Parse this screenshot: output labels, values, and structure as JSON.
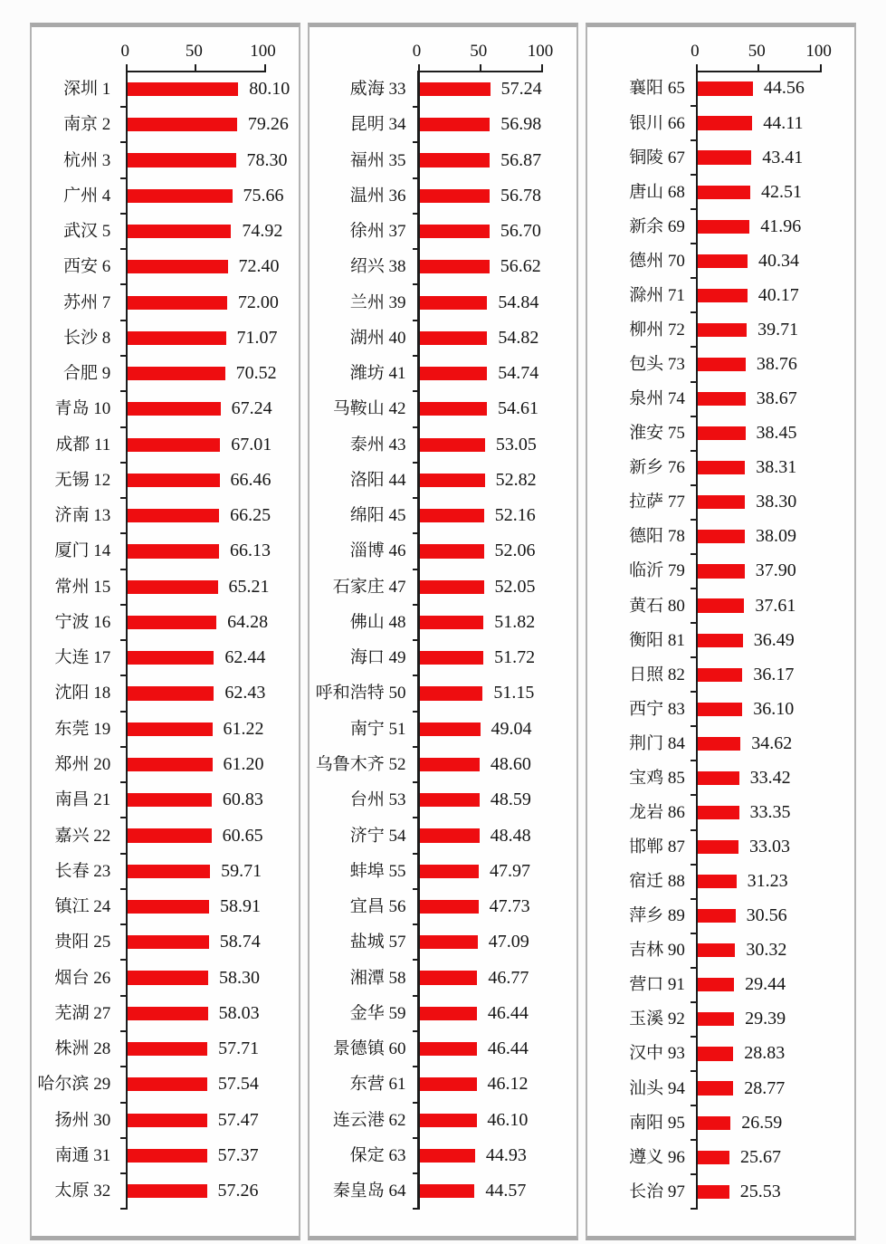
{
  "figure": {
    "description": "Three-panel horizontal bar chart ranking 97 Chinese cities by score (0-100)",
    "background_color": "#fcfcfc",
    "panel_background_color": "#fefefe",
    "bar_color": "#ee0d10",
    "text_color": "#151515",
    "axis_color": "#1c1c1c",
    "panel_border_color": "#a9a9a9",
    "panel_side_border_color": "#b3b3b3"
  },
  "chart_data": [
    {
      "type": "bar",
      "orientation": "horizontal",
      "title": "",
      "xlabel": "",
      "ylabel": "",
      "xlim": [
        0,
        100
      ],
      "xticks": [
        0,
        50,
        100
      ],
      "grid": false,
      "value_labels": true,
      "categories": [
        "深圳 1",
        "南京 2",
        "杭州 3",
        "广州 4",
        "武汉 5",
        "西安 6",
        "苏州 7",
        "长沙 8",
        "合肥 9",
        "青岛 10",
        "成都 11",
        "无锡 12",
        "济南 13",
        "厦门 14",
        "常州 15",
        "宁波 16",
        "大连 17",
        "沈阳 18",
        "东莞 19",
        "郑州 20",
        "南昌 21",
        "嘉兴 22",
        "长春 23",
        "镇江 24",
        "贵阳 25",
        "烟台 26",
        "芜湖 27",
        "株洲 28",
        "哈尔滨 29",
        "扬州 30",
        "南通 31",
        "太原 32"
      ],
      "cities": [
        "深圳",
        "南京",
        "杭州",
        "广州",
        "武汉",
        "西安",
        "苏州",
        "长沙",
        "合肥",
        "青岛",
        "成都",
        "无锡",
        "济南",
        "厦门",
        "常州",
        "宁波",
        "大连",
        "沈阳",
        "东莞",
        "郑州",
        "南昌",
        "嘉兴",
        "长春",
        "镇江",
        "贵阳",
        "烟台",
        "芜湖",
        "株洲",
        "哈尔滨",
        "扬州",
        "南通",
        "太原"
      ],
      "ranks": [
        1,
        2,
        3,
        4,
        5,
        6,
        7,
        8,
        9,
        10,
        11,
        12,
        13,
        14,
        15,
        16,
        17,
        18,
        19,
        20,
        21,
        22,
        23,
        24,
        25,
        26,
        27,
        28,
        29,
        30,
        31,
        32
      ],
      "values": [
        80.1,
        79.26,
        78.3,
        75.66,
        74.92,
        72.4,
        72.0,
        71.07,
        70.52,
        67.24,
        67.01,
        66.46,
        66.25,
        66.13,
        65.21,
        64.28,
        62.44,
        62.43,
        61.22,
        61.2,
        60.83,
        60.65,
        59.71,
        58.91,
        58.74,
        58.3,
        58.03,
        57.71,
        57.54,
        57.47,
        57.37,
        57.26
      ]
    },
    {
      "type": "bar",
      "orientation": "horizontal",
      "title": "",
      "xlabel": "",
      "ylabel": "",
      "xlim": [
        0,
        100
      ],
      "xticks": [
        0,
        50,
        100
      ],
      "grid": false,
      "value_labels": true,
      "categories": [
        "威海 33",
        "昆明 34",
        "福州 35",
        "温州 36",
        "徐州 37",
        "绍兴 38",
        "兰州 39",
        "湖州 40",
        "潍坊 41",
        "马鞍山 42",
        "泰州 43",
        "洛阳 44",
        "绵阳 45",
        "淄博 46",
        "石家庄 47",
        "佛山 48",
        "海口 49",
        "呼和浩特 50",
        "南宁 51",
        "乌鲁木齐 52",
        "台州 53",
        "济宁 54",
        "蚌埠 55",
        "宜昌 56",
        "盐城 57",
        "湘潭 58",
        "金华 59",
        "景德镇 60",
        "东营 61",
        "连云港 62",
        "保定 63",
        "秦皇岛 64"
      ],
      "cities": [
        "威海",
        "昆明",
        "福州",
        "温州",
        "徐州",
        "绍兴",
        "兰州",
        "湖州",
        "潍坊",
        "马鞍山",
        "泰州",
        "洛阳",
        "绵阳",
        "淄博",
        "石家庄",
        "佛山",
        "海口",
        "呼和浩特",
        "南宁",
        "乌鲁木齐",
        "台州",
        "济宁",
        "蚌埠",
        "宜昌",
        "盐城",
        "湘潭",
        "金华",
        "景德镇",
        "东营",
        "连云港",
        "保定",
        "秦皇岛"
      ],
      "ranks": [
        33,
        34,
        35,
        36,
        37,
        38,
        39,
        40,
        41,
        42,
        43,
        44,
        45,
        46,
        47,
        48,
        49,
        50,
        51,
        52,
        53,
        54,
        55,
        56,
        57,
        58,
        59,
        60,
        61,
        62,
        63,
        64
      ],
      "values": [
        57.24,
        56.98,
        56.87,
        56.78,
        56.7,
        56.62,
        54.84,
        54.82,
        54.74,
        54.61,
        53.05,
        52.82,
        52.16,
        52.06,
        52.05,
        51.82,
        51.72,
        51.15,
        49.04,
        48.6,
        48.59,
        48.48,
        47.97,
        47.73,
        47.09,
        46.77,
        46.44,
        46.44,
        46.12,
        46.1,
        44.93,
        44.57
      ]
    },
    {
      "type": "bar",
      "orientation": "horizontal",
      "title": "",
      "xlabel": "",
      "ylabel": "",
      "xlim": [
        0,
        100
      ],
      "xticks": [
        0,
        50,
        100
      ],
      "grid": false,
      "value_labels": true,
      "categories": [
        "襄阳 65",
        "银川 66",
        "铜陵 67",
        "唐山 68",
        "新余 69",
        "德州 70",
        "滁州 71",
        "柳州 72",
        "包头 73",
        "泉州 74",
        "淮安 75",
        "新乡 76",
        "拉萨 77",
        "德阳 78",
        "临沂 79",
        "黄石 80",
        "衡阳 81",
        "日照 82",
        "西宁 83",
        "荆门 84",
        "宝鸡 85",
        "龙岩 86",
        "邯郸 87",
        "宿迁 88",
        "萍乡 89",
        "吉林 90",
        "营口 91",
        "玉溪 92",
        "汉中 93",
        "汕头 94",
        "南阳 95",
        "遵义 96",
        "长治 97"
      ],
      "cities": [
        "襄阳",
        "银川",
        "铜陵",
        "唐山",
        "新余",
        "德州",
        "滁州",
        "柳州",
        "包头",
        "泉州",
        "淮安",
        "新乡",
        "拉萨",
        "德阳",
        "临沂",
        "黄石",
        "衡阳",
        "日照",
        "西宁",
        "荆门",
        "宝鸡",
        "龙岩",
        "邯郸",
        "宿迁",
        "萍乡",
        "吉林",
        "营口",
        "玉溪",
        "汉中",
        "汕头",
        "南阳",
        "遵义",
        "长治"
      ],
      "ranks": [
        65,
        66,
        67,
        68,
        69,
        70,
        71,
        72,
        73,
        74,
        75,
        76,
        77,
        78,
        79,
        80,
        81,
        82,
        83,
        84,
        85,
        86,
        87,
        88,
        89,
        90,
        91,
        92,
        93,
        94,
        95,
        96,
        97
      ],
      "values": [
        44.56,
        44.11,
        43.41,
        42.51,
        41.96,
        40.34,
        40.17,
        39.71,
        38.76,
        38.67,
        38.45,
        38.31,
        38.3,
        38.09,
        37.9,
        37.61,
        36.49,
        36.17,
        36.1,
        34.62,
        33.42,
        33.35,
        33.03,
        31.23,
        30.56,
        30.32,
        29.44,
        29.39,
        28.83,
        28.77,
        26.59,
        25.67,
        25.53
      ]
    }
  ]
}
